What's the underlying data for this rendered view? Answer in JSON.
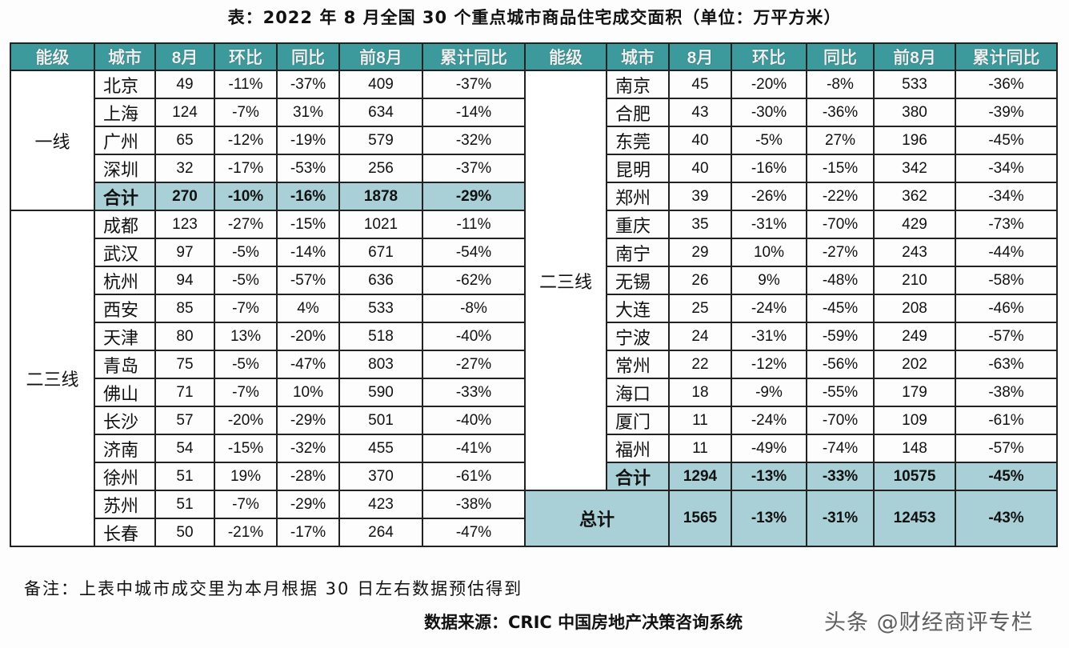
{
  "title": "表：2022 年 8 月全国 30 个重点城市商品住宅成交面积（单位：万平方米）",
  "headers": [
    "能级",
    "城市",
    "8月",
    "环比",
    "同比",
    "前8月",
    "累计同比"
  ],
  "left": {
    "groups": [
      {
        "tier": "一线",
        "rows": [
          [
            "北京",
            "49",
            "-11%",
            "-37%",
            "409",
            "-37%"
          ],
          [
            "上海",
            "124",
            "-7%",
            "31%",
            "634",
            "-14%"
          ],
          [
            "广州",
            "65",
            "-12%",
            "-19%",
            "579",
            "-32%"
          ],
          [
            "深圳",
            "32",
            "-17%",
            "-53%",
            "256",
            "-37%"
          ]
        ],
        "subtotal": [
          "合计",
          "270",
          "-10%",
          "-16%",
          "1878",
          "-29%"
        ]
      },
      {
        "tier": "二三线",
        "rows": [
          [
            "成都",
            "123",
            "-27%",
            "-15%",
            "1021",
            "-11%"
          ],
          [
            "武汉",
            "97",
            "-5%",
            "-14%",
            "671",
            "-54%"
          ],
          [
            "杭州",
            "94",
            "-5%",
            "-57%",
            "636",
            "-62%"
          ],
          [
            "西安",
            "85",
            "-7%",
            "4%",
            "533",
            "-8%"
          ],
          [
            "天津",
            "80",
            "13%",
            "-20%",
            "518",
            "-40%"
          ],
          [
            "青岛",
            "75",
            "-5%",
            "-47%",
            "803",
            "-27%"
          ],
          [
            "佛山",
            "71",
            "-7%",
            "10%",
            "590",
            "-33%"
          ],
          [
            "长沙",
            "57",
            "-20%",
            "-29%",
            "501",
            "-40%"
          ],
          [
            "济南",
            "54",
            "-15%",
            "-32%",
            "455",
            "-41%"
          ],
          [
            "徐州",
            "51",
            "19%",
            "-28%",
            "370",
            "-61%"
          ],
          [
            "苏州",
            "51",
            "-7%",
            "-29%",
            "423",
            "-38%"
          ],
          [
            "长春",
            "50",
            "-21%",
            "-17%",
            "264",
            "-47%"
          ]
        ]
      }
    ]
  },
  "right": {
    "groups": [
      {
        "tier": "二三线",
        "rows": [
          [
            "南京",
            "45",
            "-20%",
            "-8%",
            "533",
            "-36%"
          ],
          [
            "合肥",
            "43",
            "-30%",
            "-36%",
            "380",
            "-39%"
          ],
          [
            "东莞",
            "40",
            "-5%",
            "27%",
            "196",
            "-45%"
          ],
          [
            "昆明",
            "40",
            "-16%",
            "-15%",
            "342",
            "-34%"
          ],
          [
            "郑州",
            "39",
            "-26%",
            "-22%",
            "362",
            "-34%"
          ],
          [
            "重庆",
            "35",
            "-31%",
            "-70%",
            "429",
            "-73%"
          ],
          [
            "南宁",
            "29",
            "10%",
            "-27%",
            "243",
            "-44%"
          ],
          [
            "无锡",
            "26",
            "9%",
            "-48%",
            "210",
            "-58%"
          ],
          [
            "大连",
            "25",
            "-24%",
            "-45%",
            "208",
            "-46%"
          ],
          [
            "宁波",
            "24",
            "-31%",
            "-59%",
            "249",
            "-57%"
          ],
          [
            "常州",
            "22",
            "-12%",
            "-56%",
            "202",
            "-63%"
          ],
          [
            "海口",
            "18",
            "-9%",
            "-55%",
            "179",
            "-38%"
          ],
          [
            "厦门",
            "11",
            "-24%",
            "-70%",
            "109",
            "-61%"
          ],
          [
            "福州",
            "11",
            "-49%",
            "-74%",
            "148",
            "-57%"
          ]
        ],
        "subtotal": [
          "合计",
          "1294",
          "-13%",
          "-33%",
          "10575",
          "-45%"
        ]
      }
    ],
    "total": [
      "总计",
      "1565",
      "-13%",
      "-31%",
      "12453",
      "-43%"
    ]
  },
  "note": "备注：上表中城市成交里为本月根据 30 日左右数据预估得到",
  "source": "数据来源：CRIC 中国房地产决策咨询系统",
  "watermark": "头条 @财经商评专栏",
  "colors": {
    "header_bg": "#3d9a9c",
    "subtotal_bg": "#a8d0d6"
  }
}
